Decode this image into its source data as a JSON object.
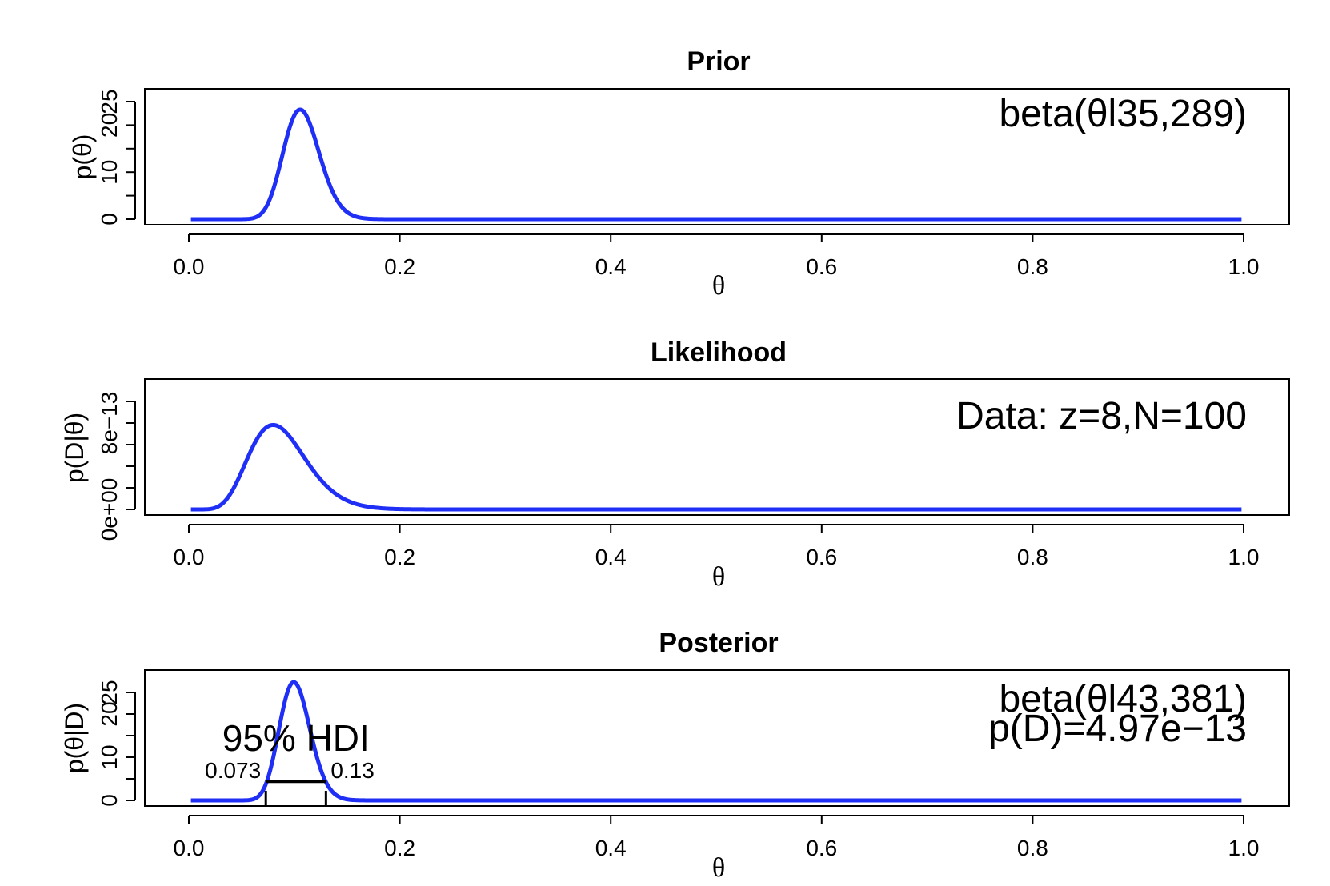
{
  "chart_data": [
    {
      "type": "line",
      "title": "Prior",
      "xlabel": "θ",
      "ylabel": "p(θ)",
      "xlim": [
        0,
        1
      ],
      "ylim": [
        0,
        27
      ],
      "x_ticks": [
        0.0,
        0.2,
        0.4,
        0.6,
        0.8,
        1.0
      ],
      "x_tick_labels": [
        "0.0",
        "0.2",
        "0.4",
        "0.6",
        "0.8",
        "1.0"
      ],
      "y_ticks": [
        0,
        5,
        10,
        15,
        20,
        25
      ],
      "y_tick_labels": [
        "0",
        "",
        "10",
        "",
        "20",
        "25"
      ],
      "annotation": "beta(θl35,289)",
      "distribution": {
        "kind": "beta",
        "a": 35,
        "b": 289
      },
      "series": [
        {
          "color": "#1f2ff5",
          "x": [
            0.0,
            0.05,
            0.07,
            0.08,
            0.09,
            0.1,
            0.105,
            0.11,
            0.12,
            0.13,
            0.14,
            0.15,
            0.17,
            0.2,
            1.0
          ],
          "y": [
            0,
            0.1,
            2.4,
            7.5,
            15.5,
            22.0,
            23.6,
            22.9,
            16.7,
            8.9,
            3.5,
            1.1,
            0.1,
            0,
            0
          ]
        }
      ]
    },
    {
      "type": "line",
      "title": "Likelihood",
      "xlabel": "θ",
      "ylabel": "p(D|θ)",
      "xlim": [
        0,
        1
      ],
      "ylim": [
        0,
        1.1e-12
      ],
      "x_ticks": [
        0.0,
        0.2,
        0.4,
        0.6,
        0.8,
        1.0
      ],
      "x_tick_labels": [
        "0.0",
        "0.2",
        "0.4",
        "0.6",
        "0.8",
        "1.0"
      ],
      "y_ticks": [
        0,
        2e-13,
        4e-13,
        6e-13,
        8e-13,
        1e-12
      ],
      "y_tick_labels": [
        "0e+00",
        "",
        "",
        "",
        "8e−13",
        ""
      ],
      "annotation": "Data: z=8,N=100",
      "distribution": {
        "kind": "bernoulli_likelihood",
        "z": 8,
        "N": 100
      },
      "series": [
        {
          "color": "#1f2ff5",
          "x": [
            0.0,
            0.02,
            0.04,
            0.06,
            0.08,
            0.1,
            0.12,
            0.14,
            0.16,
            0.18,
            0.2,
            0.25,
            1.0
          ],
          "y": [
            0,
            2e-15,
            1.9e-13,
            7.2e-13,
            1.02e-12,
            8.8e-13,
            5e-13,
            2.2e-13,
            7.3e-14,
            1.9e-14,
            5e-15,
            0,
            0
          ]
        }
      ]
    },
    {
      "type": "line",
      "title": "Posterior",
      "xlabel": "θ",
      "ylabel": "p(θ|D)",
      "xlim": [
        0,
        1
      ],
      "ylim": [
        0,
        28
      ],
      "x_ticks": [
        0.0,
        0.2,
        0.4,
        0.6,
        0.8,
        1.0
      ],
      "x_tick_labels": [
        "0.0",
        "0.2",
        "0.4",
        "0.6",
        "0.8",
        "1.0"
      ],
      "y_ticks": [
        0,
        5,
        10,
        15,
        20,
        25
      ],
      "y_tick_labels": [
        "0",
        "",
        "10",
        "",
        "20",
        "25"
      ],
      "annotation": "beta(θl43,381)",
      "annotation2": "p(D)=4.97e−13",
      "distribution": {
        "kind": "beta",
        "a": 43,
        "b": 381
      },
      "hdi": {
        "label": "95% HDI",
        "low": 0.073,
        "high": 0.13,
        "low_label": "0.073",
        "high_label": "0.13",
        "height": 4.4
      },
      "series": [
        {
          "color": "#1f2ff5",
          "x": [
            0.0,
            0.06,
            0.07,
            0.08,
            0.09,
            0.1,
            0.11,
            0.12,
            0.13,
            0.14,
            0.15,
            0.2,
            1.0
          ],
          "y": [
            0,
            0.4,
            3.0,
            11.5,
            22.0,
            27.2,
            23.5,
            14.8,
            7.2,
            2.8,
            0.9,
            0,
            0
          ]
        }
      ]
    }
  ]
}
